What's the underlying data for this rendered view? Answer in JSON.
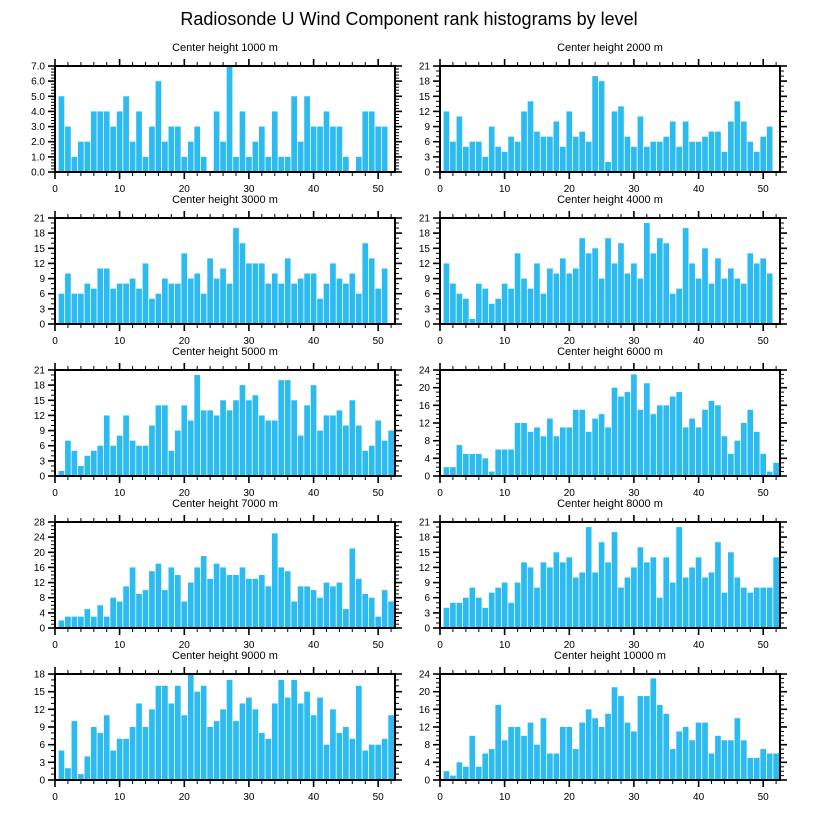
{
  "title": "Radiosonde U Wind Component rank histograms by level",
  "colors": {
    "bar": "#2CBBF0",
    "axis": "#000000",
    "background": "#FFFFFF"
  },
  "chart_data": [
    {
      "type": "bar",
      "title": "Center height 1000 m",
      "ylim": [
        0,
        7
      ],
      "ytick_step": 1,
      "yminor_divisions": 5,
      "yticklabels": [
        "0.0",
        "1.0",
        "2.0",
        "3.0",
        "4.0",
        "5.0",
        "6.0",
        "7.0"
      ],
      "xlim": [
        0,
        52
      ],
      "xtick_step": 10,
      "xminor_step": 2,
      "xticklabels": [
        "0",
        "10",
        "20",
        "30",
        "40",
        "50"
      ],
      "values": [
        5,
        3,
        1,
        2,
        2,
        4,
        4,
        4,
        3,
        4,
        5,
        2,
        4,
        1,
        3,
        6,
        2,
        3,
        3,
        1,
        2,
        3,
        1,
        0,
        4,
        2,
        7,
        1,
        4,
        1,
        2,
        3,
        1,
        4,
        1,
        1,
        5,
        2,
        5,
        3,
        3,
        4,
        3,
        3,
        1,
        0,
        1,
        4,
        4,
        3,
        3,
        0
      ]
    },
    {
      "type": "bar",
      "title": "Center height 2000 m",
      "ylim": [
        0,
        21
      ],
      "ytick_step": 3,
      "yminor_divisions": 3,
      "yticklabels": [
        "0",
        "3",
        "6",
        "9",
        "12",
        "15",
        "18",
        "21"
      ],
      "xlim": [
        0,
        52
      ],
      "xtick_step": 10,
      "xminor_step": 2,
      "xticklabels": [
        "0",
        "10",
        "20",
        "30",
        "40",
        "50"
      ],
      "values": [
        12,
        6,
        11,
        5,
        6,
        6,
        3,
        9,
        5,
        4,
        7,
        6,
        12,
        14,
        8,
        7,
        7,
        10,
        5,
        12,
        7,
        8,
        6,
        19,
        18,
        2,
        12,
        13,
        7,
        5,
        11,
        5,
        6,
        6,
        7,
        10,
        5,
        10,
        6,
        6,
        7,
        8,
        8,
        4,
        10,
        14,
        10,
        6,
        4,
        7,
        9,
        0
      ]
    },
    {
      "type": "bar",
      "title": "Center height 3000 m",
      "ylim": [
        0,
        21
      ],
      "ytick_step": 3,
      "yminor_divisions": 3,
      "yticklabels": [
        "0",
        "3",
        "6",
        "9",
        "12",
        "15",
        "18",
        "21"
      ],
      "xlim": [
        0,
        52
      ],
      "xtick_step": 10,
      "xminor_step": 2,
      "xticklabels": [
        "0",
        "10",
        "20",
        "30",
        "40",
        "50"
      ],
      "values": [
        6,
        10,
        6,
        6,
        8,
        7,
        11,
        11,
        7,
        8,
        8,
        9,
        7,
        12,
        5,
        6,
        9,
        8,
        8,
        14,
        9,
        10,
        6,
        13,
        9,
        11,
        8,
        19,
        16,
        12,
        12,
        12,
        8,
        10,
        8,
        13,
        8,
        9,
        10,
        10,
        5,
        8,
        12,
        9,
        8,
        10,
        6,
        16,
        13,
        7,
        11,
        0
      ]
    },
    {
      "type": "bar",
      "title": "Center height 4000 m",
      "ylim": [
        0,
        21
      ],
      "ytick_step": 3,
      "yminor_divisions": 3,
      "yticklabels": [
        "0",
        "3",
        "6",
        "9",
        "12",
        "15",
        "18",
        "21"
      ],
      "xlim": [
        0,
        52
      ],
      "xtick_step": 10,
      "xminor_step": 2,
      "xticklabels": [
        "0",
        "10",
        "20",
        "30",
        "40",
        "50"
      ],
      "values": [
        12,
        8,
        6,
        5,
        1,
        8,
        7,
        4,
        5,
        8,
        7,
        14,
        9,
        7,
        12,
        6,
        11,
        10,
        13,
        10,
        11,
        17,
        14,
        15,
        9,
        17,
        12,
        16,
        10,
        12,
        9,
        20,
        14,
        17,
        16,
        6,
        7,
        19,
        12,
        9,
        15,
        8,
        13,
        9,
        11,
        9,
        8,
        14,
        12,
        13,
        10,
        0
      ]
    },
    {
      "type": "bar",
      "title": "Center height 5000 m",
      "ylim": [
        0,
        21
      ],
      "ytick_step": 3,
      "yminor_divisions": 3,
      "yticklabels": [
        "0",
        "3",
        "6",
        "9",
        "12",
        "15",
        "18",
        "21"
      ],
      "xlim": [
        0,
        52
      ],
      "xtick_step": 10,
      "xminor_step": 2,
      "xticklabels": [
        "0",
        "10",
        "20",
        "30",
        "40",
        "50"
      ],
      "values": [
        1,
        7,
        5,
        2,
        4,
        5,
        6,
        12,
        6,
        8,
        12,
        7,
        6,
        6,
        10,
        14,
        14,
        5,
        9,
        14,
        11,
        20,
        13,
        13,
        12,
        15,
        13,
        15,
        18,
        15,
        16,
        12,
        11,
        11,
        19,
        19,
        15,
        8,
        14,
        18,
        9,
        12,
        12,
        13,
        10,
        15,
        10,
        5,
        6,
        11,
        7,
        9
      ]
    },
    {
      "type": "bar",
      "title": "Center height 6000 m",
      "ylim": [
        0,
        24
      ],
      "ytick_step": 4,
      "yminor_divisions": 4,
      "yticklabels": [
        "0",
        "4",
        "8",
        "12",
        "16",
        "20",
        "24"
      ],
      "xlim": [
        0,
        52
      ],
      "xtick_step": 10,
      "xminor_step": 2,
      "xticklabels": [
        "0",
        "10",
        "20",
        "30",
        "40",
        "50"
      ],
      "values": [
        2,
        2,
        7,
        5,
        5,
        5,
        4,
        1,
        6,
        6,
        6,
        12,
        12,
        10,
        11,
        9,
        13,
        9,
        11,
        11,
        15,
        15,
        10,
        13,
        14,
        11,
        20,
        18,
        19,
        23,
        15,
        21,
        14,
        16,
        16,
        18,
        19,
        11,
        13,
        11,
        15,
        17,
        16,
        9,
        5,
        8,
        12,
        15,
        10,
        5,
        1,
        3
      ]
    },
    {
      "type": "bar",
      "title": "Center height 7000 m",
      "ylim": [
        0,
        28
      ],
      "ytick_step": 4,
      "yminor_divisions": 4,
      "yticklabels": [
        "0",
        "4",
        "8",
        "12",
        "16",
        "20",
        "24",
        "28"
      ],
      "xlim": [
        0,
        52
      ],
      "xtick_step": 10,
      "xminor_step": 2,
      "xticklabels": [
        "0",
        "10",
        "20",
        "30",
        "40",
        "50"
      ],
      "values": [
        2,
        3,
        3,
        3,
        5,
        3,
        6,
        3,
        8,
        7,
        11,
        16,
        9,
        10,
        15,
        17,
        10,
        16,
        14,
        7,
        12,
        16,
        19,
        13,
        17,
        16,
        14,
        14,
        16,
        13,
        13,
        14,
        11,
        25,
        16,
        15,
        7,
        11,
        11,
        10,
        8,
        12,
        11,
        12,
        5,
        21,
        13,
        9,
        8,
        3,
        10,
        7
      ]
    },
    {
      "type": "bar",
      "title": "Center height 8000 m",
      "ylim": [
        0,
        21
      ],
      "ytick_step": 3,
      "yminor_divisions": 3,
      "yticklabels": [
        "0",
        "3",
        "6",
        "9",
        "12",
        "15",
        "18",
        "21"
      ],
      "xlim": [
        0,
        52
      ],
      "xtick_step": 10,
      "xminor_step": 2,
      "xticklabels": [
        "0",
        "10",
        "20",
        "30",
        "40",
        "50"
      ],
      "values": [
        4,
        5,
        5,
        6,
        8,
        6,
        4,
        7,
        8,
        9,
        5,
        9,
        13,
        12,
        8,
        13,
        12,
        15,
        13,
        14,
        10,
        11,
        20,
        11,
        17,
        13,
        19,
        8,
        10,
        12,
        16,
        13,
        14,
        6,
        14,
        9,
        20,
        10,
        12,
        14,
        10,
        11,
        17,
        7,
        15,
        10,
        8,
        7,
        8,
        8,
        8,
        14
      ]
    },
    {
      "type": "bar",
      "title": "Center height 9000 m",
      "ylim": [
        0,
        18
      ],
      "ytick_step": 3,
      "yminor_divisions": 3,
      "yticklabels": [
        "0",
        "3",
        "6",
        "9",
        "12",
        "15",
        "18"
      ],
      "xlim": [
        0,
        52
      ],
      "xtick_step": 10,
      "xminor_step": 2,
      "xticklabels": [
        "0",
        "10",
        "20",
        "30",
        "40",
        "50"
      ],
      "values": [
        5,
        2,
        10,
        1,
        4,
        9,
        8,
        11,
        5,
        7,
        7,
        9,
        13,
        9,
        12,
        16,
        16,
        13,
        16,
        11,
        18,
        15,
        16,
        9,
        10,
        12,
        17,
        10,
        13,
        14,
        12,
        8,
        7,
        13,
        17,
        14,
        17,
        13,
        15,
        11,
        14,
        6,
        12,
        8,
        9,
        7,
        16,
        5,
        6,
        6,
        7,
        11
      ]
    },
    {
      "type": "bar",
      "title": "Center height 10000 m",
      "ylim": [
        0,
        24
      ],
      "ytick_step": 4,
      "yminor_divisions": 4,
      "yticklabels": [
        "0",
        "4",
        "8",
        "12",
        "16",
        "20",
        "24"
      ],
      "xlim": [
        0,
        52
      ],
      "xtick_step": 10,
      "xminor_step": 2,
      "xticklabels": [
        "0",
        "10",
        "20",
        "30",
        "40",
        "50"
      ],
      "values": [
        2,
        1,
        4,
        3,
        10,
        3,
        6,
        7,
        17,
        9,
        12,
        12,
        10,
        13,
        8,
        14,
        6,
        6,
        12,
        12,
        7,
        13,
        16,
        14,
        12,
        15,
        21,
        19,
        13,
        11,
        19,
        19,
        23,
        17,
        15,
        7,
        11,
        12,
        9,
        13,
        13,
        6,
        10,
        9,
        9,
        14,
        9,
        5,
        5,
        7,
        6,
        6
      ]
    }
  ]
}
